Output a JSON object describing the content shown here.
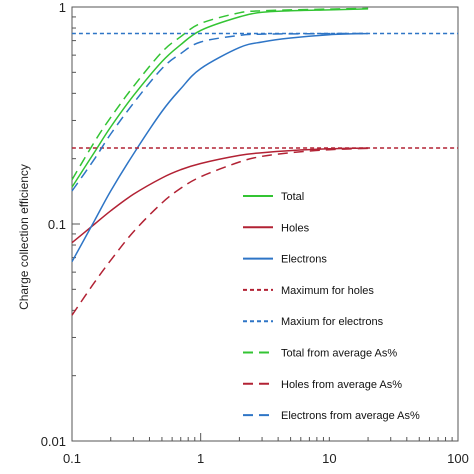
{
  "chart_data": {
    "type": "line",
    "title": "",
    "xlabel": "",
    "ylabel": "Charge collection efficiency",
    "x_scale": "log",
    "y_scale": "log",
    "xlim": [
      0.1,
      100
    ],
    "ylim": [
      0.01,
      1
    ],
    "x_ticks": [
      {
        "value": 0.1,
        "label": "0.1"
      },
      {
        "value": 1,
        "label": "1"
      },
      {
        "value": 10,
        "label": "10"
      },
      {
        "value": 100,
        "label": "100"
      }
    ],
    "y_ticks": [
      {
        "value": 0.01,
        "label": "0.01"
      },
      {
        "value": 0.1,
        "label": "0.1"
      },
      {
        "value": 1,
        "label": "1"
      }
    ],
    "grid": false,
    "legend_position": "bottom-right",
    "series": [
      {
        "name": "Total",
        "color": "#33c433",
        "style": "solid",
        "x": [
          0.1,
          0.15,
          0.2,
          0.3,
          0.5,
          0.7,
          1,
          2,
          3,
          5,
          10,
          20
        ],
        "y": [
          0.148,
          0.215,
          0.28,
          0.39,
          0.56,
          0.67,
          0.78,
          0.9,
          0.945,
          0.96,
          0.97,
          0.98
        ]
      },
      {
        "name": "Holes",
        "color": "#b22234",
        "style": "solid",
        "x": [
          0.1,
          0.15,
          0.2,
          0.3,
          0.5,
          0.7,
          1,
          2,
          3,
          5,
          10,
          20
        ],
        "y": [
          0.082,
          0.1,
          0.115,
          0.137,
          0.163,
          0.178,
          0.19,
          0.207,
          0.213,
          0.218,
          0.222,
          0.224
        ]
      },
      {
        "name": "Electrons",
        "color": "#2e75c6",
        "style": "solid",
        "x": [
          0.1,
          0.15,
          0.2,
          0.3,
          0.5,
          0.7,
          1,
          2,
          3,
          5,
          10,
          20
        ],
        "y": [
          0.067,
          0.104,
          0.142,
          0.21,
          0.33,
          0.42,
          0.52,
          0.65,
          0.69,
          0.72,
          0.745,
          0.755
        ]
      },
      {
        "name": "Maximum for holes",
        "color": "#b22234",
        "style": "dash",
        "x": [
          0.1,
          100
        ],
        "y": [
          0.224,
          0.224
        ]
      },
      {
        "name": "Maxium for electrons",
        "color": "#2e75c6",
        "style": "dash",
        "x": [
          0.1,
          100
        ],
        "y": [
          0.755,
          0.755
        ]
      },
      {
        "name": "Total from average As%",
        "color": "#33c433",
        "style": "longdash",
        "x": [
          0.1,
          0.15,
          0.2,
          0.3,
          0.5,
          0.7,
          1,
          2,
          3,
          5,
          10,
          20
        ],
        "y": [
          0.16,
          0.24,
          0.31,
          0.43,
          0.62,
          0.73,
          0.84,
          0.94,
          0.96,
          0.97,
          0.978,
          0.985
        ]
      },
      {
        "name": "Holes from average As%",
        "color": "#b22234",
        "style": "longdash",
        "x": [
          0.1,
          0.15,
          0.2,
          0.3,
          0.5,
          0.7,
          1,
          2,
          3,
          5,
          10,
          20
        ],
        "y": [
          0.038,
          0.054,
          0.068,
          0.092,
          0.125,
          0.146,
          0.165,
          0.193,
          0.205,
          0.213,
          0.22,
          0.223
        ]
      },
      {
        "name": "Electrons from average As%",
        "color": "#2e75c6",
        "style": "longdash",
        "x": [
          0.1,
          0.15,
          0.2,
          0.3,
          0.5,
          0.7,
          1,
          2,
          3,
          5,
          10,
          20
        ],
        "y": [
          0.142,
          0.2,
          0.26,
          0.36,
          0.52,
          0.61,
          0.69,
          0.74,
          0.75,
          0.752,
          0.754,
          0.755
        ]
      }
    ]
  }
}
